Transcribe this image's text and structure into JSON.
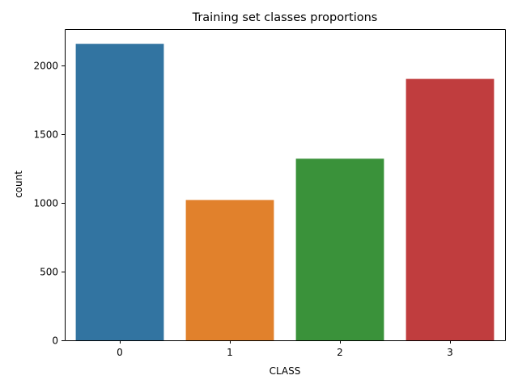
{
  "chart_data": {
    "type": "bar",
    "title": "Training set classes proportions",
    "xlabel": "CLASS",
    "ylabel": "count",
    "categories": [
      "0",
      "1",
      "2",
      "3"
    ],
    "values": [
      2155,
      1020,
      1320,
      1900
    ],
    "colors": [
      "#3274a1",
      "#e1812c",
      "#3a923a",
      "#c03d3e"
    ],
    "ylim": [
      0,
      2262
    ],
    "yticks": [
      0,
      500,
      1000,
      1500,
      2000
    ],
    "ytick_labels": [
      "0",
      "500",
      "1000",
      "1500",
      "2000"
    ],
    "grid": false,
    "legend": "none"
  }
}
